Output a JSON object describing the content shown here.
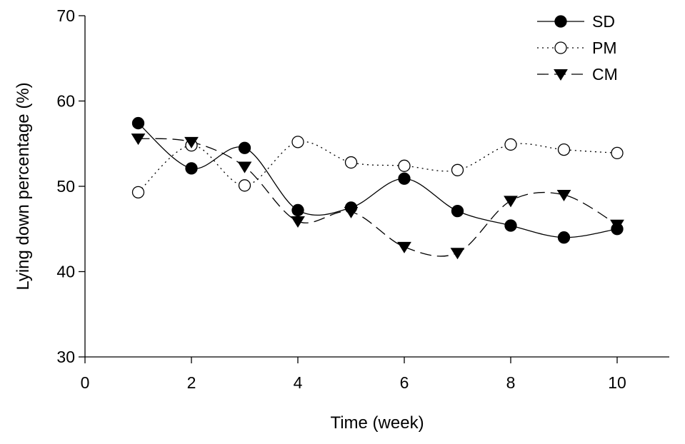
{
  "chart_data": {
    "type": "line",
    "title": "",
    "xlabel": "Time (week)",
    "ylabel": "Lying down percentage (%)",
    "xlim": [
      0,
      11
    ],
    "ylim": [
      30,
      70
    ],
    "xticks": [
      0,
      2,
      4,
      6,
      8,
      10
    ],
    "yticks": [
      30,
      40,
      50,
      60,
      70
    ],
    "grid": false,
    "legend_position": "top-right",
    "x": [
      1,
      2,
      3,
      4,
      5,
      6,
      7,
      8,
      9,
      10
    ],
    "series": [
      {
        "name": "SD",
        "values": [
          57.4,
          52.1,
          54.5,
          47.2,
          47.5,
          50.9,
          47.1,
          45.4,
          44.0,
          45.0
        ],
        "marker": "filled-circle",
        "line_style": "solid",
        "color": "#000000"
      },
      {
        "name": "PM",
        "values": [
          49.3,
          54.8,
          50.1,
          55.2,
          52.8,
          52.4,
          51.9,
          54.9,
          54.3,
          53.9
        ],
        "marker": "open-circle",
        "line_style": "dotted",
        "color": "#000000"
      },
      {
        "name": "CM",
        "values": [
          55.6,
          55.2,
          52.3,
          45.9,
          47.0,
          42.9,
          42.2,
          48.3,
          49.0,
          45.5
        ],
        "marker": "filled-triangle-down",
        "line_style": "dashed",
        "color": "#000000"
      }
    ]
  }
}
